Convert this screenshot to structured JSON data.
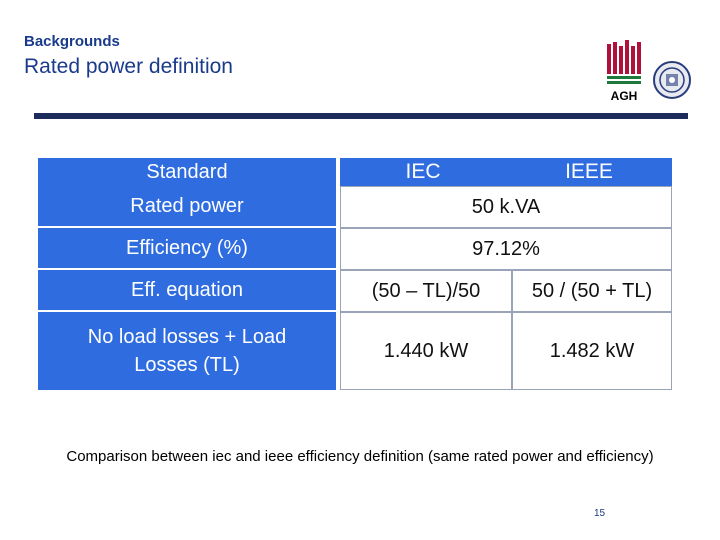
{
  "header": {
    "kicker": "Backgrounds",
    "title": "Rated power definition"
  },
  "logos": {
    "agh_text": "AGH"
  },
  "table": {
    "col_headers": {
      "iec": "IEC",
      "ieee": "IEEE"
    },
    "rows": [
      {
        "label": "Standard",
        "iec": "IEC",
        "ieee": "IEEE"
      },
      {
        "label": "Rated power",
        "merged": "50 k.VA"
      },
      {
        "label": "Efficiency (%)",
        "merged": "97.12%"
      },
      {
        "label": "Eff. equation",
        "iec": "(50 – TL)/50",
        "ieee": "50 / (50 + TL)"
      },
      {
        "label": "No load losses + Load Losses (TL)",
        "iec": "1.440 kW",
        "ieee": "1.482 kW"
      }
    ]
  },
  "footnote": "Comparison between iec and ieee efficiency definition (same rated power and efficiency)",
  "page_number": "15",
  "colors": {
    "accent": "#2e6ce0",
    "title": "#1a3a8c",
    "rule": "#1d2a5c"
  }
}
